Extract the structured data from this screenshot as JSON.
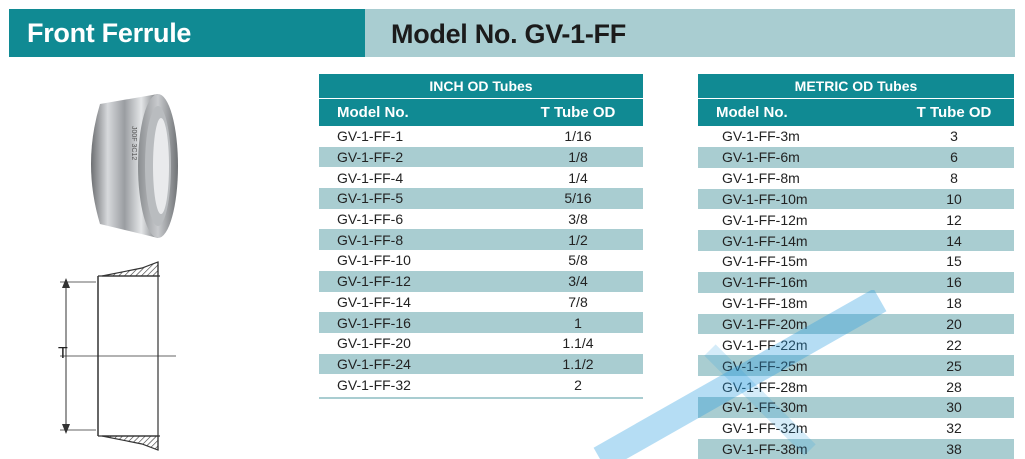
{
  "header": {
    "title": "Front Ferrule",
    "model_label": "Model No. GV-1-FF"
  },
  "colors": {
    "teal": "#108a93",
    "light_teal": "#a9cdd1",
    "watermark": "#2b9ee0"
  },
  "drawing": {
    "dimension_label": "T"
  },
  "inch_table": {
    "caption": "INCH OD Tubes",
    "col_model": "Model No.",
    "col_od": "T Tube OD",
    "rows": [
      {
        "model": "GV-1-FF-1",
        "od": "1/16"
      },
      {
        "model": "GV-1-FF-2",
        "od": "1/8"
      },
      {
        "model": "GV-1-FF-4",
        "od": "1/4"
      },
      {
        "model": "GV-1-FF-5",
        "od": "5/16"
      },
      {
        "model": "GV-1-FF-6",
        "od": "3/8"
      },
      {
        "model": "GV-1-FF-8",
        "od": "1/2"
      },
      {
        "model": "GV-1-FF-10",
        "od": "5/8"
      },
      {
        "model": "GV-1-FF-12",
        "od": "3/4"
      },
      {
        "model": "GV-1-FF-14",
        "od": "7/8"
      },
      {
        "model": "GV-1-FF-16",
        "od": "1"
      },
      {
        "model": "GV-1-FF-20",
        "od": "1.1/4"
      },
      {
        "model": "GV-1-FF-24",
        "od": "1.1/2"
      },
      {
        "model": "GV-1-FF-32",
        "od": "2"
      }
    ]
  },
  "metric_table": {
    "caption": "METRIC OD Tubes",
    "col_model": "Model No.",
    "col_od": "T Tube OD",
    "rows": [
      {
        "model": "GV-1-FF-3m",
        "od": "3"
      },
      {
        "model": "GV-1-FF-6m",
        "od": "6"
      },
      {
        "model": "GV-1-FF-8m",
        "od": "8"
      },
      {
        "model": "GV-1-FF-10m",
        "od": "10"
      },
      {
        "model": "GV-1-FF-12m",
        "od": "12"
      },
      {
        "model": "GV-1-FF-14m",
        "od": "14"
      },
      {
        "model": "GV-1-FF-15m",
        "od": "15"
      },
      {
        "model": "GV-1-FF-16m",
        "od": "16"
      },
      {
        "model": "GV-1-FF-18m",
        "od": "18"
      },
      {
        "model": "GV-1-FF-20m",
        "od": "20"
      },
      {
        "model": "GV-1-FF-22m",
        "od": "22"
      },
      {
        "model": "GV-1-FF-25m",
        "od": "25"
      },
      {
        "model": "GV-1-FF-28m",
        "od": "28"
      },
      {
        "model": "GV-1-FF-30m",
        "od": "30"
      },
      {
        "model": "GV-1-FF-32m",
        "od": "32"
      },
      {
        "model": "GV-1-FF-38m",
        "od": "38"
      }
    ]
  }
}
